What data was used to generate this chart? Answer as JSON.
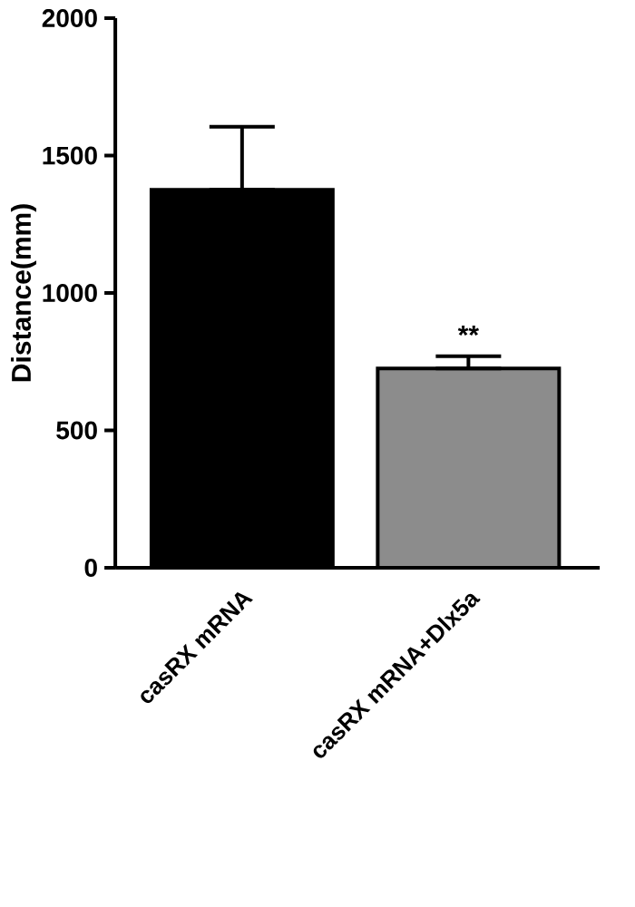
{
  "chart_data": {
    "type": "bar",
    "ylabel": "Distance(mm)",
    "categories": [
      "casRX mRNA",
      "casRX mRNA+Dlx5a"
    ],
    "values": [
      1375,
      725
    ],
    "colors": [
      "#000000",
      "#8c8c8c"
    ],
    "errors": [
      [
        1375,
        1605
      ],
      [
        725,
        770
      ]
    ],
    "ylim": [
      0,
      2000
    ],
    "yticks": [
      0,
      500,
      1000,
      1500,
      2000
    ],
    "annotations": [
      {
        "text": "**",
        "x": "casRX mRNA+Dlx5a",
        "y": 790
      }
    ]
  }
}
